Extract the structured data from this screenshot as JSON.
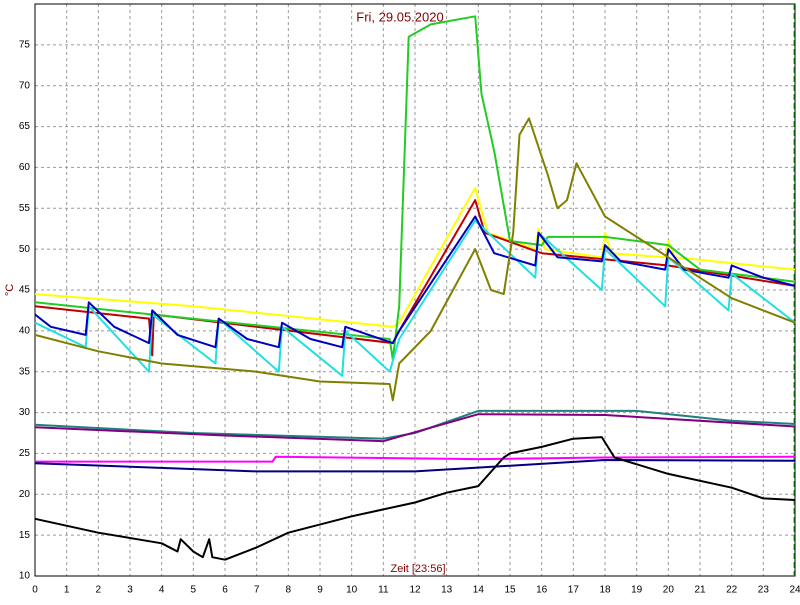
{
  "chart_data": {
    "type": "line",
    "title": "Fri, 29.05.2020",
    "x_label": "Zeit [23:56]",
    "y_label": "°C",
    "xlim": [
      0,
      24
    ],
    "xticks": [
      0,
      1,
      2,
      3,
      4,
      5,
      6,
      7,
      8,
      9,
      10,
      11,
      12,
      13,
      14,
      15,
      16,
      17,
      18,
      19,
      20,
      21,
      22,
      23,
      24
    ],
    "ylim": [
      10,
      80
    ],
    "yticks": [
      10,
      15,
      20,
      25,
      30,
      35,
      40,
      45,
      50,
      55,
      60,
      65,
      70,
      75
    ],
    "grid": true,
    "series": [
      {
        "color": "#ffff00",
        "x": [
          0,
          5,
          11.3,
          11.5,
          13.9,
          14.3,
          15.8,
          15.9,
          16.1,
          17.9,
          18,
          18.2,
          19.9,
          20,
          20.2,
          24
        ],
        "values": [
          44.5,
          43,
          40.5,
          41,
          57.5,
          52,
          50,
          52.5,
          50,
          49,
          52,
          49.5,
          49,
          51,
          49,
          47.5
        ]
      },
      {
        "color": "#c00000",
        "x": [
          0,
          3.6,
          3.7,
          3.75,
          11.3,
          11.5,
          13.9,
          14.2,
          16,
          20,
          24
        ],
        "values": [
          43,
          41.5,
          37,
          42,
          38.5,
          40,
          56,
          52,
          49.5,
          48,
          45.5
        ]
      },
      {
        "color": "#22cc22",
        "x": [
          0,
          3.7,
          11.2,
          11.3,
          11.5,
          11.8,
          12.5,
          13.9,
          14.1,
          14.5,
          15,
          16,
          16.2,
          18,
          20,
          21,
          24
        ],
        "values": [
          43.5,
          42,
          39,
          36.5,
          43,
          76,
          77.5,
          78.5,
          69,
          62,
          51,
          50.5,
          51.5,
          51.5,
          50.5,
          47.5,
          46
        ]
      },
      {
        "color": "#22e0e0",
        "x": [
          0,
          1.6,
          1.7,
          3.6,
          3.7,
          5.7,
          5.8,
          7.7,
          7.8,
          9.7,
          9.8,
          11.2,
          11.5,
          13.9,
          15.8,
          15.9,
          17.9,
          18,
          19.9,
          20,
          21.9,
          22,
          24
        ],
        "values": [
          41,
          38,
          43,
          35,
          42,
          36,
          41.5,
          35,
          40.5,
          34.5,
          40,
          35,
          39,
          53.5,
          46.5,
          52,
          45,
          50,
          43,
          49,
          42.5,
          47,
          41
        ]
      },
      {
        "color": "#0000c0",
        "x": [
          0,
          0.5,
          1.6,
          1.7,
          2.5,
          3.6,
          3.7,
          4.5,
          5.7,
          5.8,
          6.7,
          7.7,
          7.8,
          8.7,
          9.7,
          9.8,
          11.3,
          11.5,
          13.9,
          14.5,
          15.8,
          15.9,
          16.5,
          17.9,
          18,
          18.5,
          19.9,
          20,
          20.5,
          21.9,
          22,
          23,
          24
        ],
        "values": [
          42,
          40.5,
          39.5,
          43.5,
          40.5,
          38.5,
          42.5,
          39.5,
          38,
          41.5,
          39,
          38,
          41,
          39,
          38,
          40.5,
          38.5,
          40,
          54,
          49.5,
          48,
          52,
          49,
          48.5,
          50.5,
          48.5,
          47.5,
          50,
          47.5,
          46.5,
          48,
          46.5,
          45.5
        ]
      },
      {
        "color": "#808000",
        "x": [
          0,
          2,
          4,
          7,
          9,
          11.2,
          11.3,
          11.5,
          12.5,
          13.9,
          14.4,
          14.8,
          15.1,
          15.3,
          15.6,
          16.2,
          16.5,
          16.8,
          17.1,
          18,
          19,
          20,
          22,
          24
        ],
        "values": [
          39.5,
          37.5,
          36,
          35,
          33.8,
          33.5,
          31.5,
          36,
          40,
          50,
          45,
          44.5,
          52,
          64,
          66,
          59,
          55,
          56,
          60.5,
          54,
          51.5,
          49,
          44,
          41
        ]
      },
      {
        "color": "#208080",
        "x": [
          0,
          5,
          11,
          12,
          14,
          19,
          22,
          24
        ],
        "values": [
          28.5,
          27.5,
          26.8,
          27.5,
          30.2,
          30.2,
          29,
          28.6
        ]
      },
      {
        "color": "#800080",
        "x": [
          0,
          6,
          11,
          14,
          18,
          24
        ],
        "values": [
          28.2,
          27.2,
          26.5,
          29.8,
          29.7,
          28.3
        ]
      },
      {
        "color": "#ff00ff",
        "x": [
          0,
          7.5,
          7.6,
          14,
          18,
          24
        ],
        "values": [
          24,
          24,
          24.6,
          24.3,
          24.5,
          24.6
        ]
      },
      {
        "color": "#000080",
        "x": [
          0,
          7,
          12,
          15,
          18,
          24
        ],
        "values": [
          23.8,
          22.8,
          22.8,
          23.5,
          24.2,
          24.1
        ]
      },
      {
        "color": "#000000",
        "x": [
          0,
          2,
          4,
          4.5,
          4.6,
          5,
          5.3,
          5.5,
          5.6,
          6,
          7,
          8,
          10,
          12,
          13,
          14,
          14.8,
          15,
          16,
          17,
          17.9,
          18.3,
          20,
          22,
          23,
          24
        ],
        "values": [
          17,
          15.3,
          14,
          13,
          14.5,
          13,
          12.3,
          14.5,
          12.3,
          12,
          13.5,
          15.3,
          17.3,
          19,
          20.2,
          21,
          24.5,
          25,
          25.8,
          26.8,
          27,
          24.5,
          22.5,
          20.8,
          19.5,
          19.3
        ]
      }
    ]
  }
}
